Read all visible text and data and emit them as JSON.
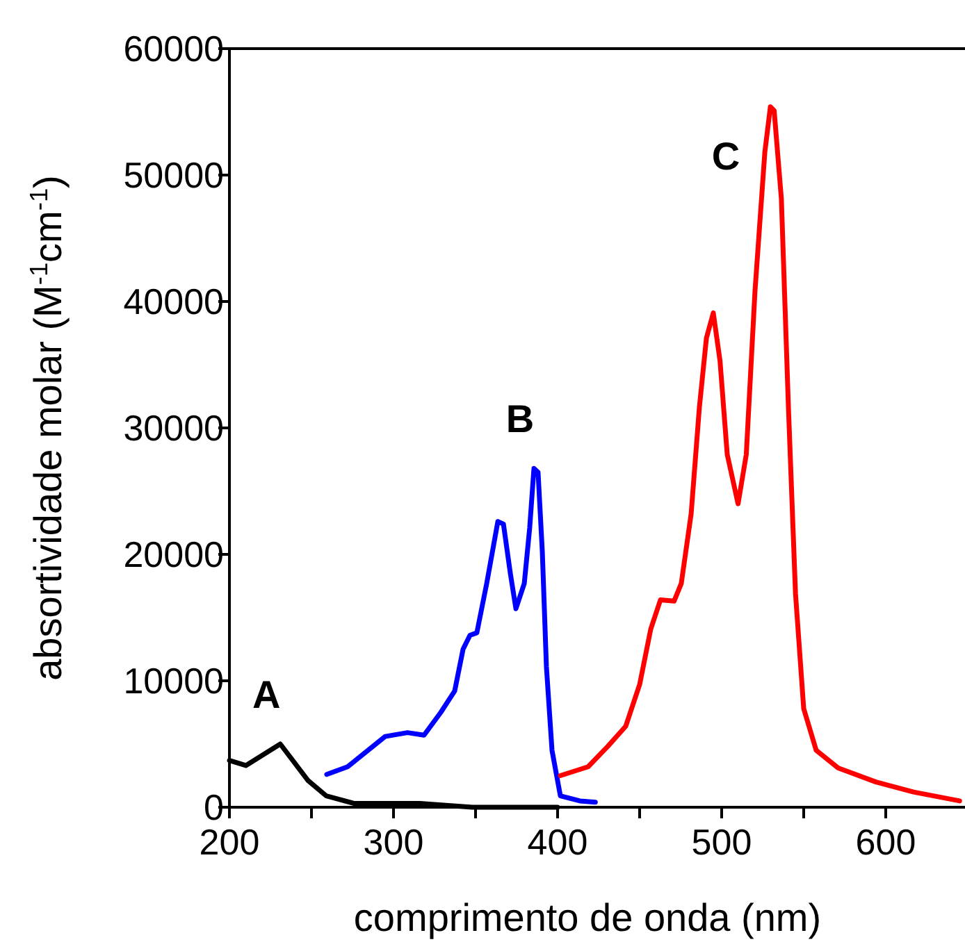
{
  "chart_data": {
    "type": "line",
    "xlabel": "comprimento de onda (nm)",
    "ylabel": "absortividade molar (M$^{-1}$cm$^{-1}$)",
    "xlim": [
      200,
      650
    ],
    "ylim": [
      0,
      60000
    ],
    "xticks": [
      200,
      {
        "value": 250,
        "label": null
      },
      300,
      {
        "value": 350,
        "label": null
      },
      400,
      {
        "value": 450,
        "label": null
      },
      500,
      {
        "value": 550,
        "label": null
      },
      600,
      {
        "value": 650,
        "label": null
      }
    ],
    "yticks": [
      0,
      10000,
      20000,
      30000,
      40000,
      50000,
      60000
    ],
    "grid": false,
    "marker": "none",
    "line_style": "solid",
    "series": [
      {
        "name": "A",
        "color": "#000000",
        "x": [
          200,
          210,
          231,
          248,
          259,
          276,
          299,
          316,
          348,
          400
        ],
        "values": [
          3700,
          3300,
          5000,
          2100,
          900,
          300,
          300,
          300,
          0,
          0
        ]
      },
      {
        "name": "B",
        "color": "#0000ff",
        "x": [
          259.3,
          272,
          295,
          308.5,
          318.6,
          328.8,
          337.3,
          342.4,
          346.6,
          350.8,
          356.8,
          363.6,
          367,
          371.2,
          374.6,
          379.7,
          383,
          385.6,
          388.1,
          390.7,
          393.2,
          396.6,
          401.7,
          413.6,
          423
        ],
        "values": [
          2600,
          3200,
          5600,
          5900,
          5700,
          7500,
          9200,
          12500,
          13600,
          13800,
          17700,
          22600,
          22400,
          18500,
          15700,
          17700,
          22100,
          26800,
          26500,
          20200,
          11100,
          4500,
          900,
          500,
          400
        ]
      },
      {
        "name": "C",
        "color": "#ff0000",
        "x": [
          401.7,
          418.6,
          430.5,
          441.5,
          450,
          456.8,
          462.7,
          471,
          475.4,
          481.4,
          486.4,
          490.7,
          494.9,
          499,
          503.4,
          510,
          515,
          520.3,
          526.3,
          529.7,
          532,
          536.4,
          540.7,
          545,
          550,
          557.6,
          571,
          594,
          617,
          645
        ],
        "values": [
          2500,
          3200,
          4800,
          6400,
          9700,
          14100,
          16400,
          16300,
          17700,
          23200,
          31600,
          37100,
          39100,
          35300,
          27900,
          24000,
          27900,
          40800,
          51800,
          55400,
          55100,
          48100,
          31600,
          16900,
          7800,
          4500,
          3100,
          2000,
          1200,
          500
        ]
      }
    ]
  }
}
